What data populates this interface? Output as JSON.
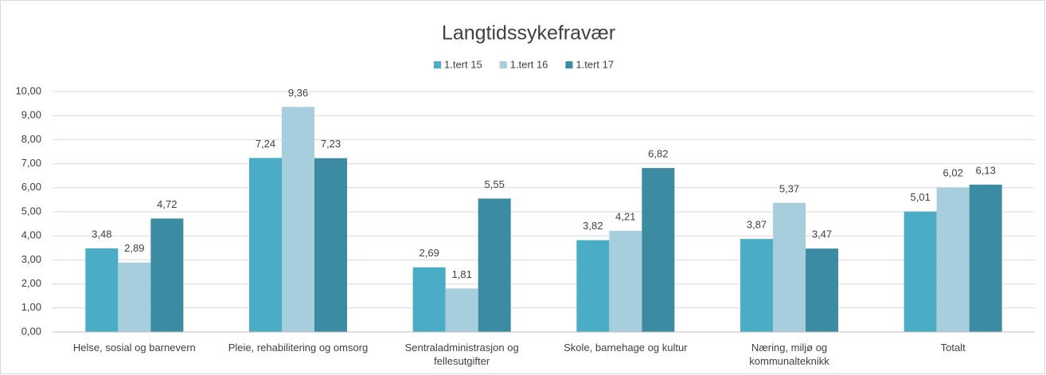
{
  "chart_data": {
    "type": "bar",
    "title": "Langtidssykefravær",
    "categories": [
      "Helse, sosial og barnevern",
      "Pleie, rehabilitering og omsorg",
      "Sentraladministrasjon og fellesutgifter",
      "Skole, barnehage og kultur",
      "Næring, miljø og kommunalteknikk",
      "Totalt"
    ],
    "series": [
      {
        "name": "1.tert 15",
        "color": "#4bacc6",
        "values": [
          3.48,
          7.24,
          2.69,
          3.82,
          3.87,
          5.01
        ],
        "value_labels": [
          "3,48",
          "7,24",
          "2,69",
          "3,82",
          "3,87",
          "5,01"
        ]
      },
      {
        "name": "1.tert 16",
        "color": "#a6cedc",
        "values": [
          2.89,
          9.36,
          1.81,
          4.21,
          5.37,
          6.02
        ],
        "value_labels": [
          "2,89",
          "9,36",
          "1,81",
          "4,21",
          "5,37",
          "6,02"
        ]
      },
      {
        "name": "1.tert 17",
        "color": "#3b8ca3",
        "values": [
          4.72,
          7.23,
          5.55,
          6.82,
          3.47,
          6.13
        ],
        "value_labels": [
          "4,72",
          "7,23",
          "5,55",
          "6,82",
          "3,47",
          "6,13"
        ]
      }
    ],
    "ylim": [
      0,
      10
    ],
    "yticks": [
      {
        "value": 0,
        "label": "0,00"
      },
      {
        "value": 1,
        "label": "1,00"
      },
      {
        "value": 2,
        "label": "2,00"
      },
      {
        "value": 3,
        "label": "3,00"
      },
      {
        "value": 4,
        "label": "4,00"
      },
      {
        "value": 5,
        "label": "5,00"
      },
      {
        "value": 6,
        "label": "6,00"
      },
      {
        "value": 7,
        "label": "7,00"
      },
      {
        "value": 8,
        "label": "8,00"
      },
      {
        "value": 9,
        "label": "9,00"
      },
      {
        "value": 10,
        "label": "10,00"
      }
    ],
    "grid": true,
    "legend": "top"
  }
}
